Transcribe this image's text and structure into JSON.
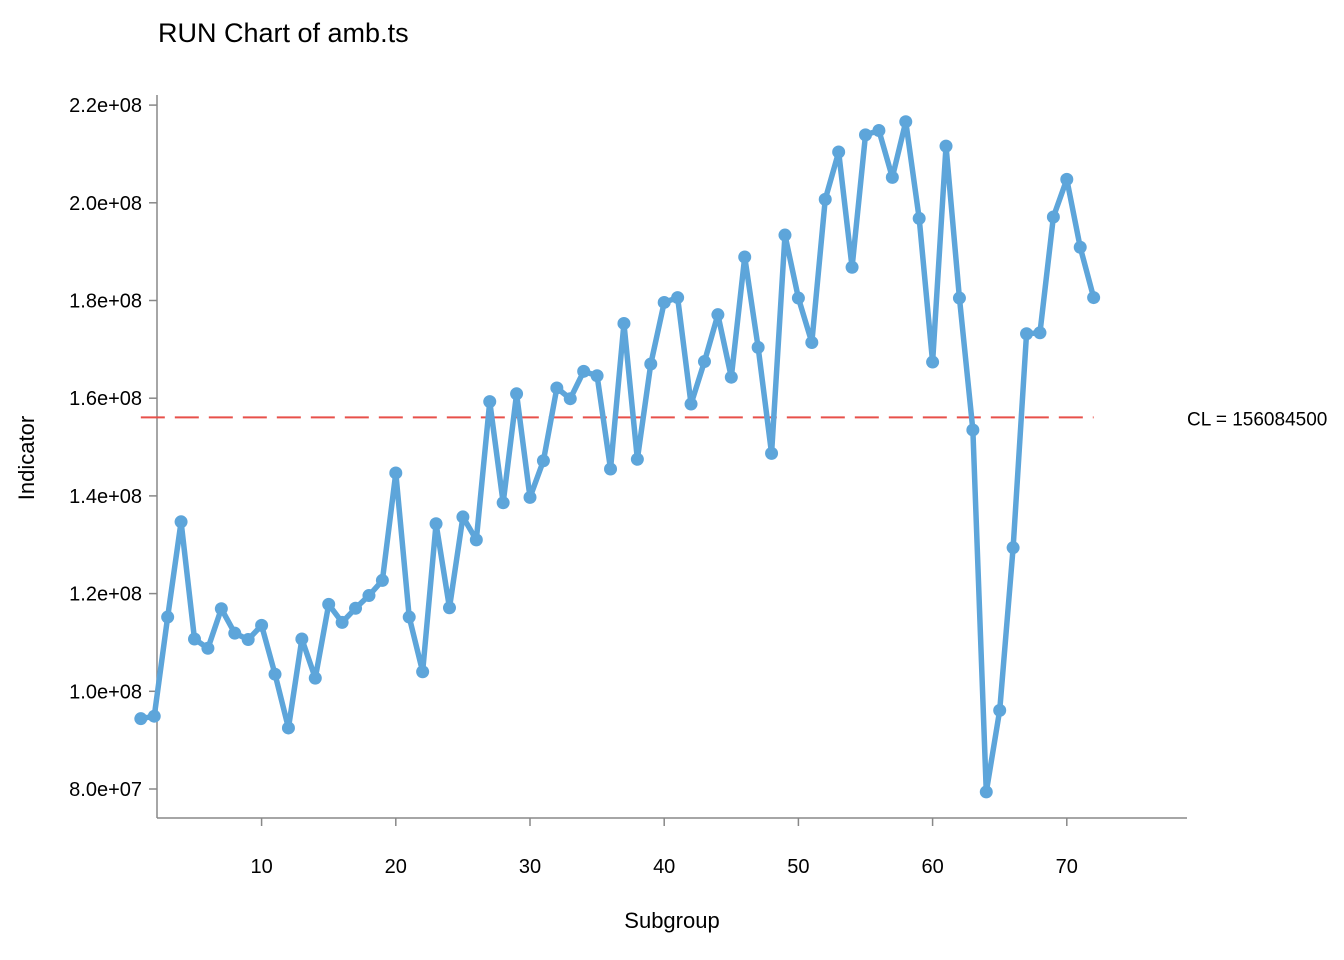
{
  "chart_data": {
    "type": "line",
    "title": "RUN Chart of amb.ts",
    "xlabel": "Subgroup",
    "ylabel": "Indicator",
    "xlim": [
      0,
      73
    ],
    "ylim": [
      77000000,
      222000000
    ],
    "x_ticks": [
      10,
      20,
      30,
      40,
      50,
      60,
      70
    ],
    "x_tick_labels": [
      "10",
      "20",
      "30",
      "40",
      "50",
      "60",
      "70"
    ],
    "y_ticks": [
      80000000,
      100000000,
      120000000,
      140000000,
      160000000,
      180000000,
      200000000,
      220000000
    ],
    "y_tick_labels": [
      "8.0e+07",
      "1.0e+08",
      "1.2e+08",
      "1.4e+08",
      "1.6e+08",
      "1.8e+08",
      "2.0e+08",
      "2.2e+08"
    ],
    "grid": false,
    "series": [
      {
        "color": "#5da5da",
        "x": [
          1,
          2,
          3,
          4,
          5,
          6,
          7,
          8,
          9,
          10,
          11,
          12,
          13,
          14,
          15,
          16,
          17,
          18,
          19,
          20,
          21,
          22,
          23,
          24,
          25,
          26,
          27,
          28,
          29,
          30,
          31,
          32,
          33,
          34,
          35,
          36,
          37,
          38,
          39,
          40,
          41,
          42,
          43,
          44,
          45,
          46,
          47,
          48,
          49,
          50,
          51,
          52,
          53,
          54,
          55,
          56,
          57,
          58,
          59,
          60,
          61,
          62,
          63,
          64,
          65,
          66,
          67,
          68,
          69,
          70,
          71,
          72
        ],
        "values": [
          94400000,
          94900000,
          115200000,
          134700000,
          110700000,
          108800000,
          116900000,
          111900000,
          110600000,
          113500000,
          103500000,
          92500000,
          110700000,
          102700000,
          117800000,
          114100000,
          117000000,
          119600000,
          122700000,
          144700000,
          115200000,
          104000000,
          134300000,
          117100000,
          135700000,
          131000000,
          159300000,
          138600000,
          160900000,
          139700000,
          147200000,
          162100000,
          159900000,
          165500000,
          164600000,
          145500000,
          175300000,
          147500000,
          167000000,
          179600000,
          180600000,
          158800000,
          167500000,
          177100000,
          164300000,
          188900000,
          170400000,
          148700000,
          193400000,
          180500000,
          171400000,
          200700000,
          210400000,
          186800000,
          213900000,
          214800000,
          205200000,
          216600000,
          196800000,
          167400000,
          211600000,
          180500000,
          153500000,
          79400000,
          96100000,
          129400000,
          173200000,
          173400000,
          197100000,
          204800000,
          190900000,
          180600000
        ]
      }
    ],
    "center_line": {
      "value": 156084500,
      "label": "CL = 156084500",
      "color": "#e8504a"
    }
  }
}
